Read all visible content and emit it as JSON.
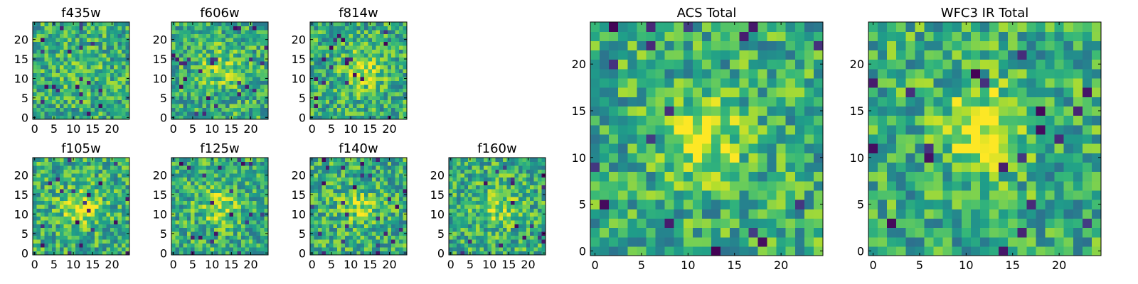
{
  "chart_data": [
    {
      "type": "heatmap",
      "title": "f435w",
      "xlim": [
        0,
        24
      ],
      "ylim": [
        0,
        24
      ],
      "xticks": [
        0,
        5,
        10,
        15,
        20
      ],
      "yticks": [
        0,
        5,
        10,
        15,
        20
      ],
      "xtick_labels": [
        "0",
        "5",
        "10",
        "15",
        "20"
      ],
      "ytick_labels": [
        "0",
        "5",
        "10",
        "15",
        "20"
      ],
      "colormap": "viridis",
      "description": "noise-like pixel map, mostly green/yellow"
    },
    {
      "type": "heatmap",
      "title": "f606w",
      "xlim": [
        0,
        24
      ],
      "ylim": [
        0,
        24
      ],
      "xticks": [
        0,
        5,
        10,
        15,
        20
      ],
      "yticks": [
        0,
        5,
        10,
        15,
        20
      ],
      "xtick_labels": [
        "0",
        "5",
        "10",
        "15",
        "20"
      ],
      "ytick_labels": [
        "0",
        "5",
        "10",
        "15",
        "20"
      ],
      "colormap": "viridis",
      "peak": [
        12,
        13
      ]
    },
    {
      "type": "heatmap",
      "title": "f814w",
      "xlim": [
        0,
        24
      ],
      "ylim": [
        0,
        24
      ],
      "xticks": [
        0,
        5,
        10,
        15,
        20
      ],
      "yticks": [
        0,
        5,
        10,
        15,
        20
      ],
      "xtick_labels": [
        "0",
        "5",
        "10",
        "15",
        "20"
      ],
      "ytick_labels": [
        "0",
        "5",
        "10",
        "15",
        "20"
      ],
      "colormap": "viridis",
      "peak": [
        13,
        12
      ]
    },
    {
      "type": "heatmap",
      "title": "f105w",
      "xlim": [
        0,
        24
      ],
      "ylim": [
        0,
        24
      ],
      "xticks": [
        0,
        5,
        10,
        15,
        20
      ],
      "yticks": [
        0,
        5,
        10,
        15,
        20
      ],
      "xtick_labels": [
        "0",
        "5",
        "10",
        "15",
        "20"
      ],
      "ytick_labels": [
        "0",
        "5",
        "10",
        "15",
        "20"
      ],
      "colormap": "viridis",
      "peak": [
        12,
        12
      ]
    },
    {
      "type": "heatmap",
      "title": "f125w",
      "xlim": [
        0,
        24
      ],
      "ylim": [
        0,
        24
      ],
      "xticks": [
        0,
        5,
        10,
        15,
        20
      ],
      "yticks": [
        0,
        5,
        10,
        15,
        20
      ],
      "xtick_labels": [
        "0",
        "5",
        "10",
        "15",
        "20"
      ],
      "ytick_labels": [
        "0",
        "5",
        "10",
        "15",
        "20"
      ],
      "colormap": "viridis",
      "peak": [
        12,
        12
      ]
    },
    {
      "type": "heatmap",
      "title": "f140w",
      "xlim": [
        0,
        24
      ],
      "ylim": [
        0,
        24
      ],
      "xticks": [
        0,
        5,
        10,
        15,
        20
      ],
      "yticks": [
        0,
        5,
        10,
        15,
        20
      ],
      "xtick_labels": [
        "0",
        "5",
        "10",
        "15",
        "20"
      ],
      "ytick_labels": [
        "0",
        "5",
        "10",
        "15",
        "20"
      ],
      "colormap": "viridis",
      "peak": [
        12,
        12
      ]
    },
    {
      "type": "heatmap",
      "title": "f160w",
      "xlim": [
        0,
        24
      ],
      "ylim": [
        0,
        24
      ],
      "xticks": [
        0,
        5,
        10,
        15,
        20
      ],
      "yticks": [
        0,
        5,
        10,
        15,
        20
      ],
      "xtick_labels": [
        "0",
        "5",
        "10",
        "15",
        "20"
      ],
      "ytick_labels": [
        "0",
        "5",
        "10",
        "15",
        "20"
      ],
      "colormap": "viridis",
      "peak": [
        12,
        12
      ]
    },
    {
      "type": "heatmap",
      "title": "ACS Total",
      "xlim": [
        0,
        24
      ],
      "ylim": [
        0,
        24
      ],
      "xticks": [
        0,
        5,
        10,
        15,
        20
      ],
      "yticks": [
        0,
        5,
        10,
        15,
        20
      ],
      "xtick_labels": [
        "0",
        "5",
        "10",
        "15",
        "20"
      ],
      "ytick_labels": [
        "0",
        "5",
        "10",
        "15",
        "20"
      ],
      "colormap": "viridis",
      "peak": [
        12,
        12
      ]
    },
    {
      "type": "heatmap",
      "title": "WFC3 IR Total",
      "xlim": [
        0,
        24
      ],
      "ylim": [
        0,
        24
      ],
      "xticks": [
        0,
        5,
        10,
        15,
        20
      ],
      "yticks": [
        0,
        5,
        10,
        15,
        20
      ],
      "xtick_labels": [
        "0",
        "5",
        "10",
        "15",
        "20"
      ],
      "ytick_labels": [
        "0",
        "5",
        "10",
        "15",
        "20"
      ],
      "colormap": "viridis",
      "peak": [
        12,
        13
      ]
    }
  ],
  "colors": {
    "viridis_low": "#440154",
    "viridis_mid": "#21918c",
    "viridis_high": "#fde725",
    "axes_frame": "#000000",
    "background": "#ffffff"
  }
}
